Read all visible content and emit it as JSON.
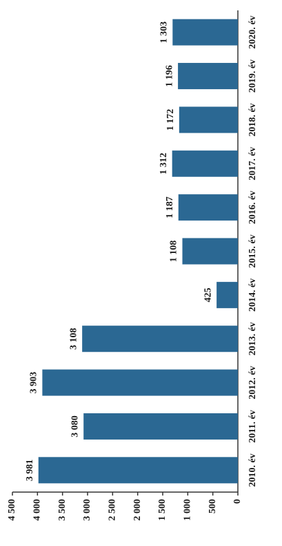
{
  "chart_data": {
    "type": "bar",
    "categories": [
      "2010. év",
      "2011. év",
      "2012. év",
      "2013. év",
      "2014. év",
      "2015. év",
      "2016. év",
      "2017. év",
      "2018. év",
      "2019. év",
      "2020. év"
    ],
    "values": [
      3981,
      3080,
      3903,
      3108,
      425,
      1108,
      1187,
      1312,
      1172,
      1196,
      1303
    ],
    "value_labels": [
      "3 981",
      "3 080",
      "3 903",
      "3 108",
      "425",
      "1 108",
      "1 187",
      "1 312",
      "1 172",
      "1 196",
      "1 303"
    ],
    "color": "#2b6893",
    "ylim": [
      0,
      4500
    ],
    "yticks": [
      0,
      500,
      {
        "value": 1000,
        "label": "1 000"
      },
      {
        "value": 1500,
        "label": "1 500"
      },
      {
        "value": 2000,
        "label": "2 000"
      },
      {
        "value": 2500,
        "label": "2 500"
      },
      {
        "value": 3000,
        "label": "3 000"
      },
      {
        "value": 3500,
        "label": "3 500"
      },
      {
        "value": 4000,
        "label": "4 000"
      },
      {
        "value": 4500,
        "label": "4 500"
      }
    ],
    "grid": false
  }
}
